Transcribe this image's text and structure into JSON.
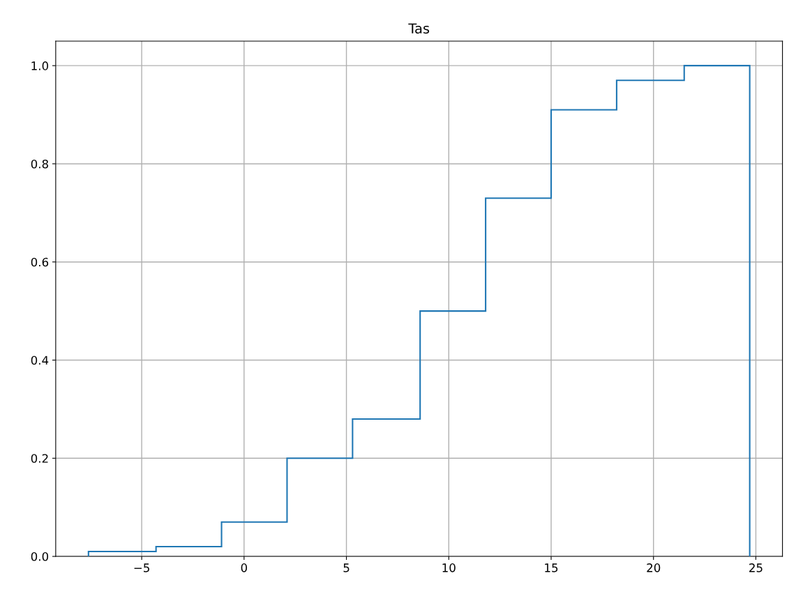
{
  "chart_data": {
    "type": "histogram",
    "title": "Tas",
    "bins": [
      -7.6,
      -4.3,
      -1.1,
      2.1,
      5.3,
      8.6,
      11.8,
      15.0,
      18.2,
      21.5,
      24.7
    ],
    "values": [
      0.01,
      0.02,
      0.07,
      0.2,
      0.28,
      0.5,
      0.73,
      0.91,
      0.97,
      1.0
    ],
    "color": "#1f77b4",
    "xlim": [
      -9.2,
      26.3
    ],
    "xticks": [
      {
        "value": -5,
        "label": "−5"
      },
      0,
      5,
      10,
      15,
      20,
      25
    ],
    "ylim": [
      0,
      1.05
    ],
    "yticks": [
      {
        "value": 0,
        "label": "0.0"
      },
      0.2,
      0.4,
      0.6,
      0.8,
      {
        "value": 1,
        "label": "1.0"
      }
    ],
    "grid": true
  }
}
